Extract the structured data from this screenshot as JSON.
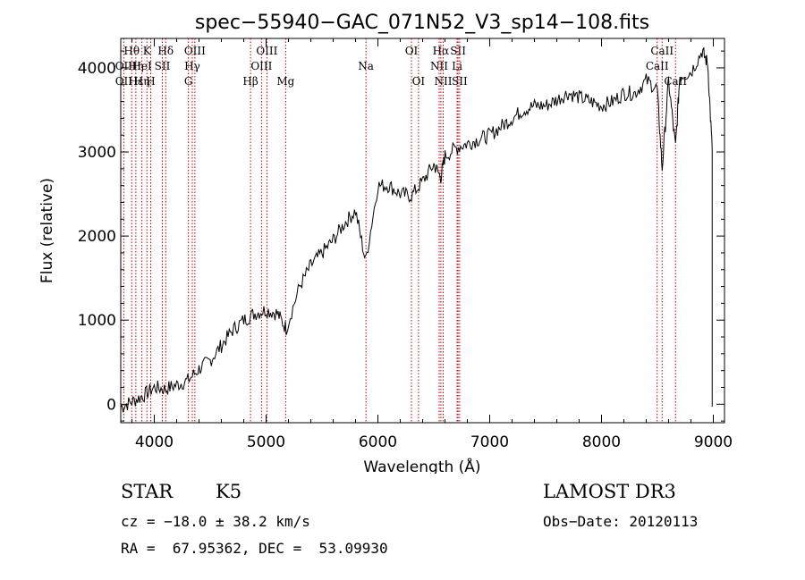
{
  "chart_data": {
    "type": "line",
    "title": "spec−55940−GAC_071N52_V3_sp14−108.fits",
    "xlabel": "Wavelength (Å)",
    "ylabel": "Flux (relative)",
    "xlim": [
      3700,
      9100
    ],
    "ylim": [
      -220,
      4350
    ],
    "x_ticks": [
      4000,
      5000,
      6000,
      7000,
      8000,
      9000
    ],
    "y_ticks": [
      0,
      1000,
      2000,
      3000,
      4000
    ],
    "series": [
      {
        "name": "flux",
        "color": "#000000",
        "x": [
          3700,
          3800,
          3900,
          4000,
          4100,
          4200,
          4300,
          4400,
          4500,
          4600,
          4700,
          4800,
          4900,
          5000,
          5100,
          5180,
          5300,
          5400,
          5500,
          5600,
          5700,
          5800,
          5890,
          6000,
          6100,
          6200,
          6300,
          6400,
          6500,
          6563,
          6600,
          6700,
          6800,
          6900,
          7000,
          7100,
          7200,
          7300,
          7400,
          7500,
          7600,
          7700,
          7800,
          7900,
          8000,
          8100,
          8200,
          8300,
          8400,
          8498,
          8542,
          8600,
          8662,
          8700,
          8800,
          8900,
          8950,
          8990
        ],
        "y": [
          -30,
          30,
          100,
          200,
          180,
          230,
          280,
          420,
          520,
          700,
          880,
          1000,
          1080,
          1120,
          1080,
          900,
          1400,
          1650,
          1800,
          1950,
          2150,
          2300,
          1700,
          2600,
          2600,
          2500,
          2480,
          2650,
          2850,
          2700,
          2950,
          3050,
          3100,
          3150,
          3200,
          3300,
          3400,
          3500,
          3550,
          3550,
          3620,
          3700,
          3650,
          3600,
          3550,
          3600,
          3700,
          3700,
          3850,
          3750,
          2800,
          3850,
          3050,
          3900,
          3950,
          4200,
          4050,
          3000
        ]
      }
    ],
    "line_markers": [
      {
        "label": "Hθ",
        "x": 3798,
        "row": 0
      },
      {
        "label": "K",
        "x": 3934,
        "row": 0
      },
      {
        "label": "Hδ",
        "x": 4102,
        "row": 0
      },
      {
        "label": "OIII",
        "x": 4363,
        "row": 0
      },
      {
        "label": "OIII",
        "x": 5007,
        "row": 0
      },
      {
        "label": "OI",
        "x": 6300,
        "row": 0
      },
      {
        "label": "Hα",
        "x": 6563,
        "row": 0
      },
      {
        "label": "SII",
        "x": 6717,
        "row": 0
      },
      {
        "label": "CaII",
        "x": 8542,
        "row": 0
      },
      {
        "label": "OII",
        "x": 3727,
        "row": 1
      },
      {
        "label": "Hη",
        "x": 3835,
        "row": 1
      },
      {
        "label": "HeI",
        "x": 3889,
        "row": 1
      },
      {
        "label": "SII",
        "x": 4072,
        "row": 1
      },
      {
        "label": "Hγ",
        "x": 4340,
        "row": 1
      },
      {
        "label": "OIII",
        "x": 4959,
        "row": 1
      },
      {
        "label": "Na",
        "x": 5893,
        "row": 1
      },
      {
        "label": "NII",
        "x": 6548,
        "row": 1
      },
      {
        "label": "Li",
        "x": 6708,
        "row": 1
      },
      {
        "label": "CaII",
        "x": 8498,
        "row": 1
      },
      {
        "label": "OII",
        "x": 3727,
        "row": 2
      },
      {
        "label": "Hε",
        "x": 3835,
        "row": 2
      },
      {
        "label": "Hη",
        "x": 3889,
        "row": 2
      },
      {
        "label": "H",
        "x": 3968,
        "row": 2
      },
      {
        "label": "G",
        "x": 4305,
        "row": 2
      },
      {
        "label": "Hβ",
        "x": 4861,
        "row": 2
      },
      {
        "label": "Mg",
        "x": 5175,
        "row": 2
      },
      {
        "label": "OI",
        "x": 6363,
        "row": 2
      },
      {
        "label": "NII",
        "x": 6584,
        "row": 2
      },
      {
        "label": "SII",
        "x": 6731,
        "row": 2
      },
      {
        "label": "CaII",
        "x": 8662,
        "row": 2
      }
    ]
  },
  "info": {
    "class_label": "STAR",
    "subclass": "K5",
    "survey": "LAMOST DR3",
    "redshift": "cz = −18.0 ± 38.2 km/s",
    "obs_date": "Obs−Date: 20120113",
    "coords": "RA =  67.95362, DEC =  53.09930"
  }
}
